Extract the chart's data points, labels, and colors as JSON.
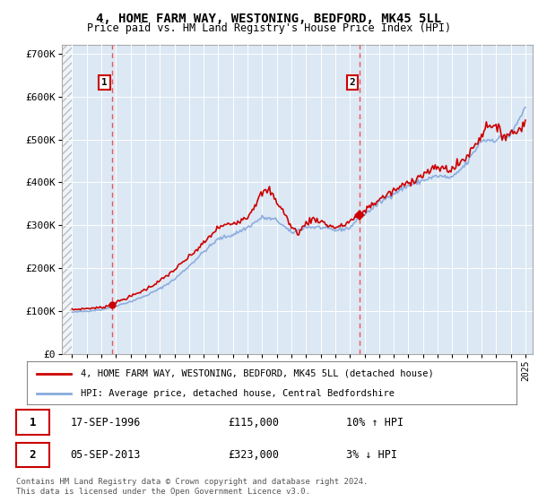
{
  "title": "4, HOME FARM WAY, WESTONING, BEDFORD, MK45 5LL",
  "subtitle": "Price paid vs. HM Land Registry's House Price Index (HPI)",
  "ylabel_ticks": [
    "£0",
    "£100K",
    "£200K",
    "£300K",
    "£400K",
    "£500K",
    "£600K",
    "£700K"
  ],
  "ytick_values": [
    0,
    100000,
    200000,
    300000,
    400000,
    500000,
    600000,
    700000
  ],
  "ylim": [
    0,
    720000
  ],
  "xlim_start": 1993.3,
  "xlim_end": 2025.5,
  "sale1_year": 1996.72,
  "sale1_price": 115000,
  "sale2_year": 2013.68,
  "sale2_price": 323000,
  "sale1_date": "17-SEP-1996",
  "sale1_price_str": "£115,000",
  "sale1_hpi": "10% ↑ HPI",
  "sale2_date": "05-SEP-2013",
  "sale2_price_str": "£323,000",
  "sale2_hpi": "3% ↓ HPI",
  "line_color_house": "#cc0000",
  "line_color_hpi": "#88aadd",
  "dashed_line_color": "#ee4444",
  "plot_bg_color": "#dce8f4",
  "legend_line1": "4, HOME FARM WAY, WESTONING, BEDFORD, MK45 5LL (detached house)",
  "legend_line2": "HPI: Average price, detached house, Central Bedfordshire",
  "footer": "Contains HM Land Registry data © Crown copyright and database right 2024.\nThis data is licensed under the Open Government Licence v3.0."
}
